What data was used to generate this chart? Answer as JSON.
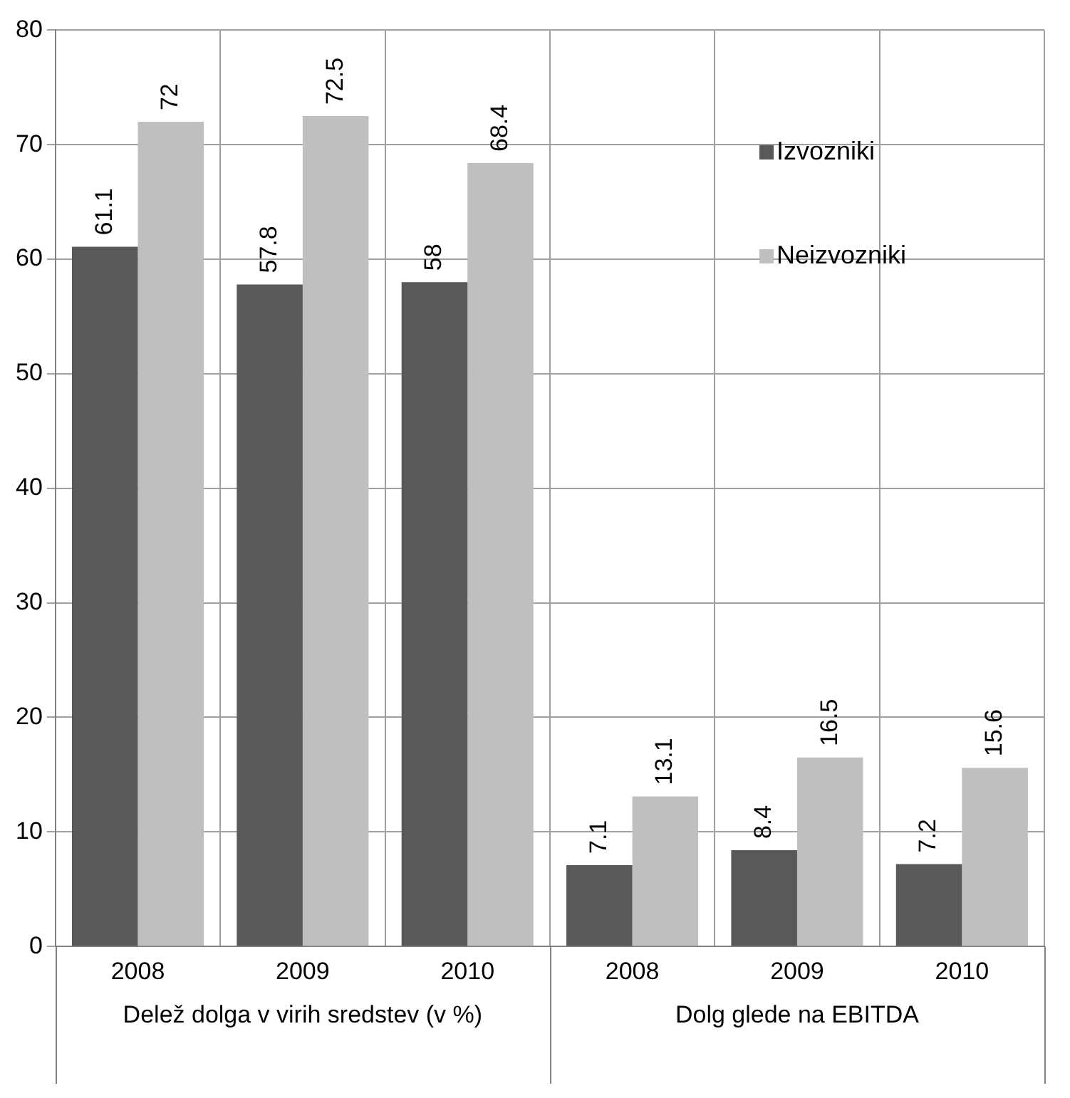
{
  "chart_data": {
    "type": "bar",
    "categories": [
      "2008",
      "2009",
      "2010",
      "2008",
      "2009",
      "2010"
    ],
    "series": [
      {
        "name": "Izvozniki",
        "color": "#595959",
        "values": [
          61.1,
          57.8,
          58,
          7.1,
          8.4,
          7.2
        ]
      },
      {
        "name": "Neizvozniki",
        "color": "#bfbfbf",
        "values": [
          72,
          72.5,
          68.4,
          13.1,
          16.5,
          15.6
        ]
      }
    ],
    "ylim": [
      0,
      80
    ],
    "yticks": [
      0,
      10,
      20,
      30,
      40,
      50,
      60,
      70,
      80
    ],
    "grid": true,
    "legend": "top right",
    "data_labels": true,
    "annotations": [
      "Delež dolga v virih sredstev (v %)",
      "Dolg glede na EBITDA"
    ]
  }
}
